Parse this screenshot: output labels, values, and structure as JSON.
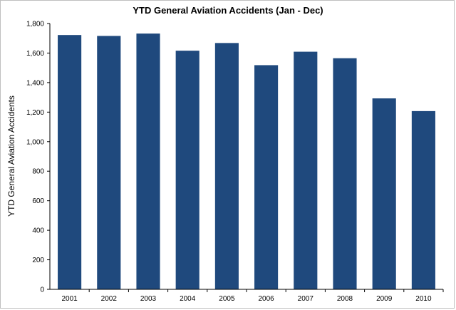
{
  "chart_data": {
    "type": "bar",
    "title": "YTD  General Aviation  Accidents (Jan - Dec)",
    "xlabel": "",
    "ylabel": "YTD General Aviation Accidents",
    "categories": [
      "2001",
      "2002",
      "2003",
      "2004",
      "2005",
      "2006",
      "2007",
      "2008",
      "2009",
      "2010"
    ],
    "values": [
      1722,
      1716,
      1732,
      1616,
      1668,
      1518,
      1609,
      1565,
      1293,
      1207
    ],
    "ylim": [
      0,
      1800
    ],
    "yticks": [
      "0",
      "200",
      "400",
      "600",
      "800",
      "1,000",
      "1,200",
      "1,400",
      "1,600",
      "1,800"
    ],
    "grid": false,
    "bar_color": "#1f497d"
  }
}
